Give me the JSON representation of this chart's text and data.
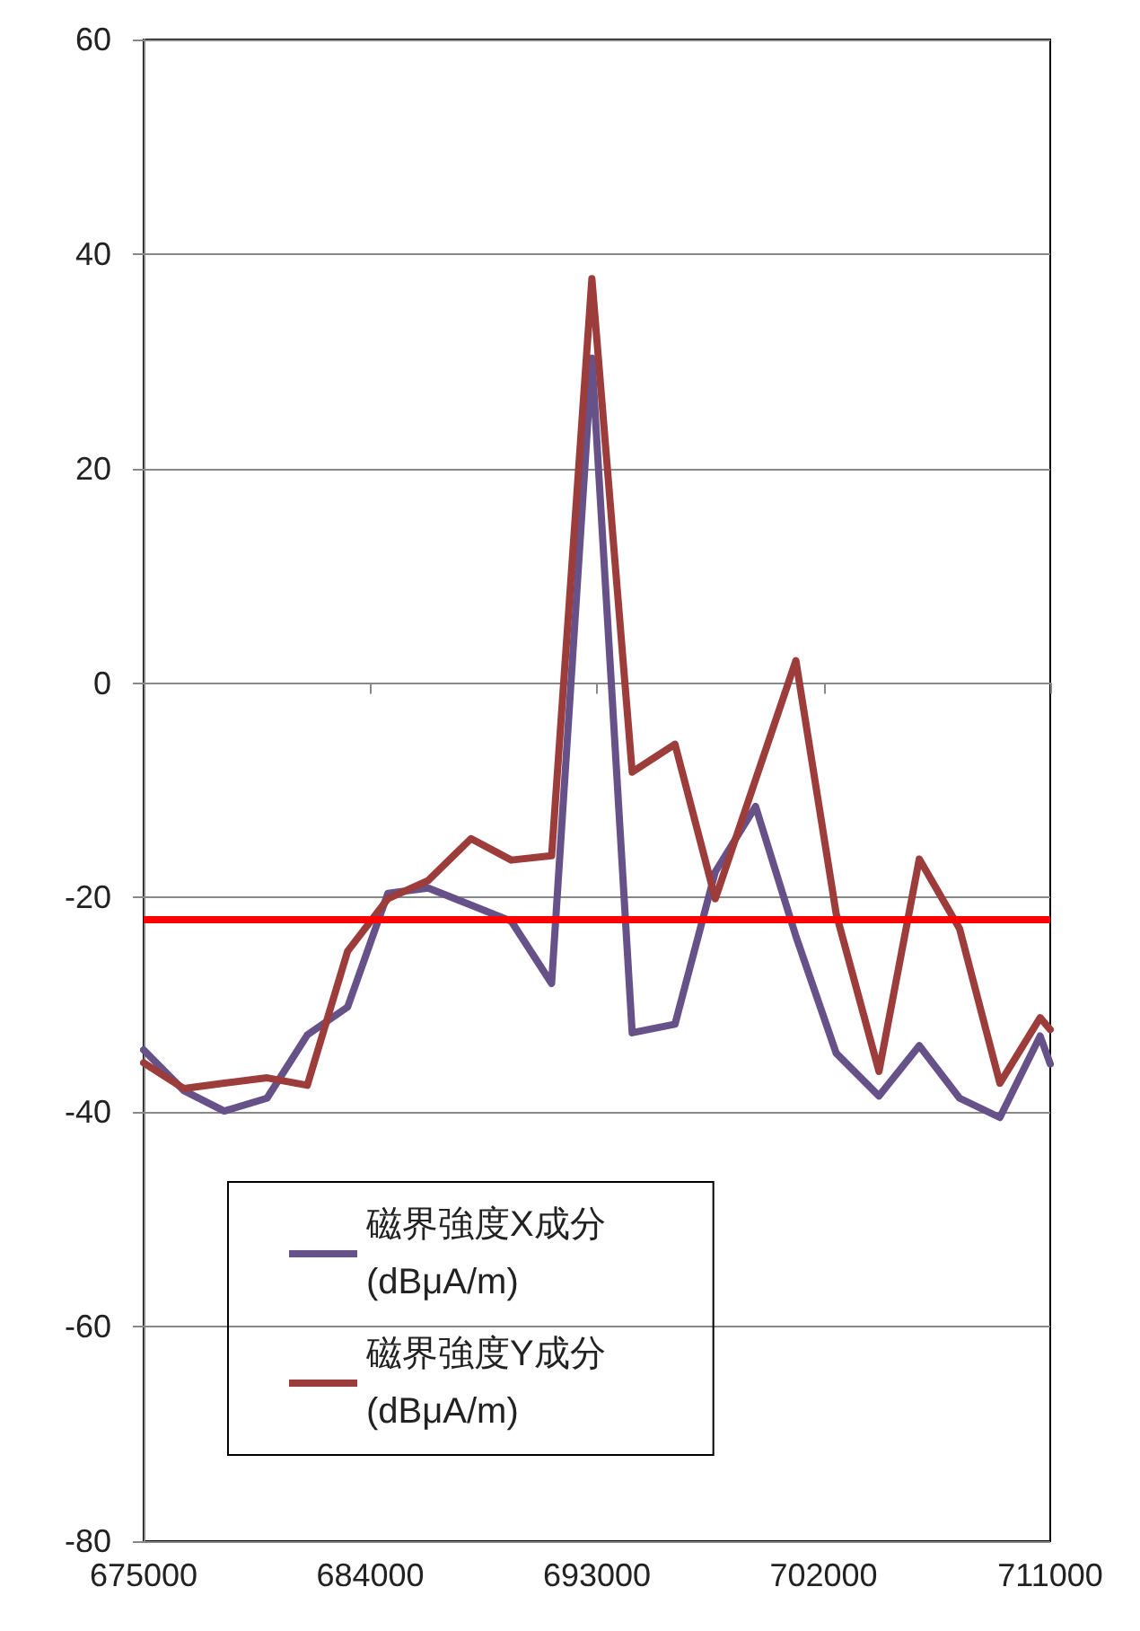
{
  "chart_data": {
    "type": "line",
    "x": [
      675000,
      676600,
      678200,
      679900,
      681500,
      683100,
      684700,
      686300,
      688000,
      689600,
      691200,
      692800,
      694400,
      696100,
      697700,
      699300,
      700900,
      702500,
      704200,
      705800,
      707400,
      709000,
      710600,
      711000
    ],
    "series": [
      {
        "name": "磁界強度X成分 (dBμA/m)",
        "color": "#675189",
        "values": [
          -34.2,
          -38,
          -39.9,
          -38.7,
          -32.8,
          -30.2,
          -19.6,
          -19.1,
          -20.7,
          -22.2,
          -28,
          30.3,
          -32.6,
          -31.8,
          -17.6,
          -11.5,
          -23.6,
          -34.5,
          -38.5,
          -33.8,
          -38.7,
          -40.5,
          -32.9,
          -35.5
        ]
      },
      {
        "name": "磁界強度Y成分 (dBμA/m)",
        "color": "#9c3d3b",
        "values": [
          -35.4,
          -37.8,
          -37.3,
          -36.8,
          -37.5,
          -25,
          -20.1,
          -18.4,
          -14.5,
          -16.5,
          -16.1,
          37.7,
          -8.3,
          -5.7,
          -20.1,
          -9,
          2.1,
          -21.5,
          -36.2,
          -16.4,
          -22.9,
          -37.3,
          -31.2,
          -32.3
        ]
      }
    ],
    "xlim": [
      675000,
      711000
    ],
    "xticks": [
      675000,
      684000,
      693000,
      702000,
      711000
    ],
    "ylim": [
      -80,
      60
    ],
    "yticks": [
      -80,
      -60,
      -40,
      -20,
      0,
      20,
      40,
      60
    ],
    "ref_lines": [
      {
        "axis": "y",
        "value": -22,
        "color": "#ff0000",
        "line_style": "solid"
      }
    ],
    "grid": "y",
    "legend": "bottom",
    "marker": "none",
    "line_style": "solid"
  }
}
